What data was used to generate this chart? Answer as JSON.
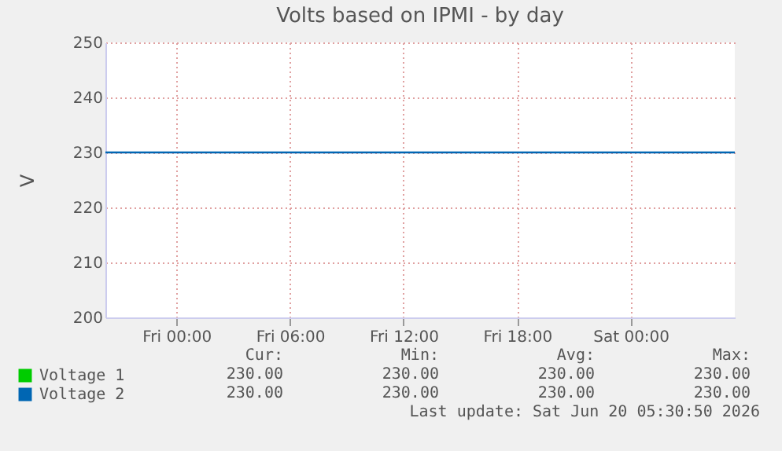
{
  "chart_data": {
    "type": "line",
    "title": "Volts based on IPMI - by day",
    "ylabel": "V",
    "x": [
      "2026-06-18T20:15",
      "2026-06-20T05:30"
    ],
    "xlim": [
      "2026-06-18T20:15",
      "2026-06-20T05:30"
    ],
    "xticks": [
      {
        "value": "2026-06-19T00:00",
        "label": "Fri 00:00"
      },
      {
        "value": "2026-06-19T06:00",
        "label": "Fri 06:00"
      },
      {
        "value": "2026-06-19T12:00",
        "label": "Fri 12:00"
      },
      {
        "value": "2026-06-19T18:00",
        "label": "Fri 18:00"
      },
      {
        "value": "2026-06-20T00:00",
        "label": "Sat 00:00"
      }
    ],
    "ylim": [
      200,
      250
    ],
    "yticks": [
      200,
      210,
      220,
      230,
      240,
      250
    ],
    "series": [
      {
        "name": "Voltage 1",
        "color": "#00cc00",
        "values": [
          null,
          null
        ]
      },
      {
        "name": "Voltage 2",
        "color": "#0066b3",
        "values": [
          230,
          230
        ]
      }
    ],
    "grid": true,
    "legend": "bottom left",
    "annotations": [
      "Cur:",
      "Min:",
      "Avg:",
      "Max:",
      "230.00",
      "230.00",
      "230.00",
      "230.00",
      "230.00",
      "230.00",
      "230.00",
      "230.00",
      "Last update: Sat Jun 20 05:30:50 2026"
    ]
  }
}
